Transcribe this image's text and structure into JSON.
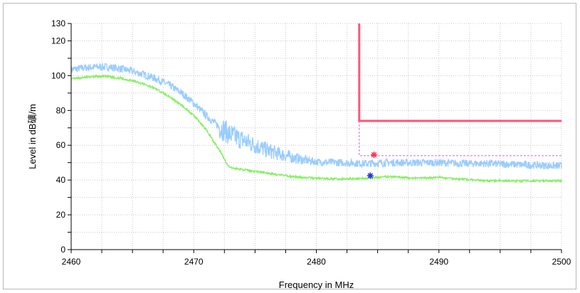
{
  "chart_data": {
    "type": "line",
    "xlabel": "Frequency in MHz",
    "ylabel": "Level in dB礦/m",
    "xlim": [
      2460,
      2500
    ],
    "ylim": [
      0,
      130
    ],
    "x_ticks": [
      2460,
      2470,
      2480,
      2490,
      2500
    ],
    "y_ticks": [
      0,
      20,
      40,
      60,
      80,
      100,
      120,
      130
    ],
    "grid": true,
    "colors": {
      "peak": "#99ccff",
      "average": "#88ee66",
      "limit_peak": "#ff5577",
      "limit_avg": "#ff44ff",
      "marker_peak": "#ff3355",
      "marker_avg": "#2233dd"
    },
    "series": [
      {
        "key": "peak",
        "x": [
          2460,
          2461,
          2462,
          2463,
          2464,
          2465,
          2466,
          2467,
          2468,
          2469,
          2470,
          2471,
          2472,
          2473,
          2474,
          2475,
          2476,
          2477,
          2478,
          2479,
          2480,
          2482,
          2484,
          2486,
          2488,
          2490,
          2492,
          2494,
          2496,
          2498,
          2500
        ],
        "y": [
          103.5,
          104.5,
          105,
          105,
          104,
          102.5,
          100.5,
          98,
          94.5,
          90,
          84,
          77,
          71,
          66,
          63,
          60,
          57,
          55,
          53,
          51.5,
          50.5,
          50,
          49.5,
          50,
          50,
          50,
          49.5,
          49.5,
          49,
          48.5,
          48
        ]
      },
      {
        "key": "average",
        "x": [
          2460,
          2461,
          2462,
          2463,
          2464,
          2465,
          2466,
          2467,
          2468,
          2469,
          2470,
          2471,
          2472,
          2472.8,
          2473,
          2474,
          2475,
          2476,
          2477,
          2478,
          2479,
          2480,
          2482,
          2484,
          2486,
          2488,
          2490,
          2492,
          2494,
          2496,
          2498,
          2500
        ],
        "y": [
          98,
          99,
          99.5,
          99.5,
          98.5,
          97,
          95,
          92,
          88,
          83,
          77,
          69,
          58,
          48,
          47,
          46,
          45,
          44,
          43,
          42,
          41.5,
          41,
          40.5,
          41,
          42,
          41,
          41.5,
          40.5,
          39.5,
          39.5,
          39.5,
          39.5
        ]
      },
      {
        "key": "limit_peak",
        "x": [
          2483.5,
          2483.5,
          2500
        ],
        "y": [
          130,
          74,
          74
        ]
      },
      {
        "key": "limit_avg",
        "x": [
          2483.5,
          2483.5,
          2500
        ],
        "y": [
          74,
          54,
          54
        ]
      }
    ],
    "markers": [
      {
        "key": "marker_peak",
        "x": 2484.7,
        "y": 54.5
      },
      {
        "key": "marker_avg",
        "x": 2484.4,
        "y": 42.5
      }
    ]
  }
}
